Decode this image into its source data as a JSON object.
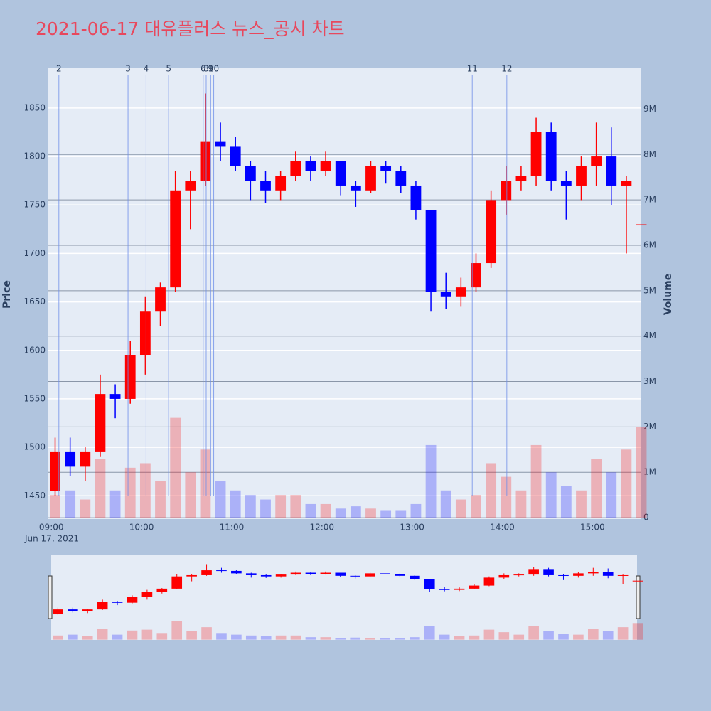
{
  "chart_data": {
    "type": "candlestick",
    "title": "2021-06-17 대유플러스 뉴스_공시 차트",
    "x_label_date": "Jun 17, 2021",
    "ylabel": "Price",
    "y2label": "Volume",
    "increasing_color": "#ff0000",
    "decreasing_color": "#0000ff",
    "x": [
      "09:00",
      "09:10",
      "09:20",
      "09:30",
      "09:40",
      "09:50",
      "10:00",
      "10:10",
      "10:20",
      "10:30",
      "10:40",
      "10:50",
      "11:00",
      "11:10",
      "11:20",
      "11:30",
      "11:40",
      "11:50",
      "12:00",
      "12:10",
      "12:20",
      "12:30",
      "12:40",
      "12:50",
      "13:00",
      "13:10",
      "13:20",
      "13:30",
      "13:40",
      "13:50",
      "14:00",
      "14:10",
      "14:20",
      "14:30",
      "14:40",
      "14:50",
      "15:00",
      "15:10",
      "15:20",
      "15:30"
    ],
    "open": [
      1455,
      1495,
      1480,
      1495,
      1555,
      1550,
      1595,
      1640,
      1665,
      1765,
      1775,
      1815,
      1810,
      1790,
      1775,
      1765,
      1780,
      1795,
      1785,
      1795,
      1770,
      1765,
      1790,
      1785,
      1770,
      1745,
      1660,
      1655,
      1665,
      1690,
      1755,
      1775,
      1780,
      1825,
      1775,
      1770,
      1790,
      1800,
      1770,
      1730
    ],
    "high": [
      1510,
      1510,
      1500,
      1575,
      1565,
      1610,
      1655,
      1670,
      1785,
      1785,
      1865,
      1835,
      1820,
      1795,
      1785,
      1785,
      1805,
      1800,
      1805,
      1795,
      1775,
      1795,
      1795,
      1790,
      1775,
      1745,
      1680,
      1675,
      1700,
      1765,
      1790,
      1790,
      1840,
      1835,
      1785,
      1800,
      1835,
      1830,
      1780,
      1730
    ],
    "low": [
      1450,
      1470,
      1465,
      1490,
      1530,
      1545,
      1575,
      1625,
      1660,
      1725,
      1770,
      1795,
      1785,
      1755,
      1752,
      1755,
      1775,
      1775,
      1780,
      1760,
      1748,
      1762,
      1772,
      1762,
      1735,
      1640,
      1643,
      1645,
      1660,
      1685,
      1740,
      1765,
      1770,
      1765,
      1735,
      1755,
      1770,
      1750,
      1700,
      1730
    ],
    "close": [
      1495,
      1480,
      1495,
      1555,
      1550,
      1595,
      1640,
      1665,
      1765,
      1775,
      1815,
      1810,
      1790,
      1775,
      1765,
      1780,
      1795,
      1785,
      1795,
      1770,
      1765,
      1790,
      1785,
      1770,
      1745,
      1660,
      1655,
      1665,
      1690,
      1755,
      1775,
      1780,
      1825,
      1775,
      1770,
      1790,
      1800,
      1770,
      1775,
      1730
    ],
    "volume": [
      500000,
      600000,
      400000,
      1300000,
      600000,
      1100000,
      1200000,
      800000,
      2200000,
      1000000,
      1500000,
      800000,
      600000,
      500000,
      400000,
      500000,
      500000,
      300000,
      300000,
      200000,
      250000,
      200000,
      150000,
      150000,
      300000,
      1600000,
      600000,
      400000,
      500000,
      1200000,
      900000,
      600000,
      1600000,
      1000000,
      700000,
      600000,
      1300000,
      1000000,
      1500000,
      2000000
    ],
    "xlim": [
      "08:58",
      "15:32"
    ],
    "xticks": [
      "09:00",
      "10:00",
      "11:00",
      "12:00",
      "13:00",
      "14:00",
      "15:00"
    ],
    "ylim": [
      1426,
      1891
    ],
    "yticks": [
      1450,
      1500,
      1550,
      1600,
      1650,
      1700,
      1750,
      1800,
      1850
    ],
    "y2lim": [
      -30000,
      9900000
    ],
    "y2ticks": [
      0,
      {
        "value": 1000000,
        "label": "1M"
      },
      {
        "value": 2000000,
        "label": "2M"
      },
      {
        "value": 3000000,
        "label": "3M"
      },
      {
        "value": 4000000,
        "label": "4M"
      },
      {
        "value": 5000000,
        "label": "5M"
      },
      {
        "value": 6000000,
        "label": "6M"
      },
      {
        "value": 7000000,
        "label": "7M"
      },
      {
        "value": 8000000,
        "label": "8M"
      },
      {
        "value": 9000000,
        "label": "9M"
      }
    ],
    "marker_color": "#6f8fe8",
    "markers": [
      {
        "label": "2",
        "x": "09:05"
      },
      {
        "label": "3",
        "x": "09:51"
      },
      {
        "label": "4",
        "x": "10:03"
      },
      {
        "label": "5",
        "x": "10:18"
      },
      {
        "label": "6",
        "x": "10:41"
      },
      {
        "label": "8",
        "x": "10:43"
      },
      {
        "label": "9",
        "x": "10:46"
      },
      {
        "label": "10",
        "x": "10:48"
      },
      {
        "label": "11",
        "x": "13:40"
      },
      {
        "label": "12",
        "x": "14:03"
      }
    ],
    "grid": true
  }
}
